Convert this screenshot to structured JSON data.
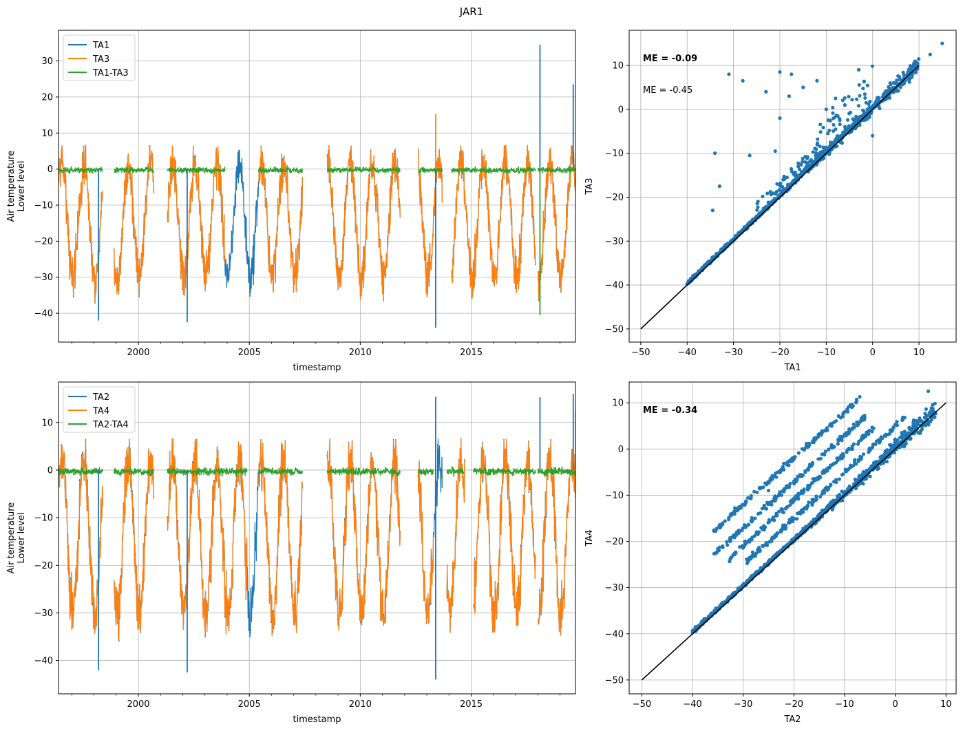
{
  "figure": {
    "title": "JAR1"
  },
  "colors": {
    "series1": "#1f77b4",
    "series2": "#ff7f0e",
    "diff": "#2ca02c",
    "identity": "#000000"
  },
  "chart_data": [
    {
      "type": "line",
      "id": "ts-top",
      "xlabel": "timestamp",
      "ylabel_lines": [
        "Air temperature",
        "Lower level"
      ],
      "xlim": [
        1996.4,
        2019.7
      ],
      "ylim": [
        -48,
        38.5
      ],
      "xticks": [
        2000,
        2005,
        2010,
        2015
      ],
      "yticks": [
        -40,
        -30,
        -20,
        -10,
        0,
        10,
        20,
        30
      ],
      "legend": "upper-left",
      "series": [
        {
          "name": "TA1",
          "color": "#1f77b4"
        },
        {
          "name": "TA3",
          "color": "#ff7f0e"
        },
        {
          "name": "TA1-TA3",
          "color": "#2ca02c"
        }
      ],
      "data_periods": [
        [
          1996.4,
          1998.4
        ],
        [
          1998.9,
          2000.7
        ],
        [
          2001.3,
          2007.4
        ],
        [
          2008.5,
          2011.8
        ],
        [
          2012.6,
          2013.7
        ],
        [
          2014.1,
          2017.9
        ],
        [
          2018.0,
          2019.7
        ]
      ],
      "primary_only_periods": [
        [
          2003.9,
          2005.4
        ]
      ],
      "extremes": [
        {
          "series": "TA1",
          "x": 2018.1,
          "y": 34.5
        },
        {
          "series": "TA1",
          "x": 2019.6,
          "y": 23.5
        },
        {
          "series": "TA3",
          "x": 2013.4,
          "y": 15.3
        },
        {
          "series": "TA1",
          "x": 2013.4,
          "y": -44
        },
        {
          "series": "TA1",
          "x": 2002.2,
          "y": -42.5
        },
        {
          "series": "TA1",
          "x": 1998.2,
          "y": -42
        },
        {
          "series": "TA1-TA3",
          "x": 2018.1,
          "y": -40.5
        }
      ]
    },
    {
      "type": "scatter",
      "id": "scatter-top",
      "xlabel": "TA1",
      "ylabel": "TA3",
      "xlim": [
        -52.5,
        18
      ],
      "ylim": [
        -53,
        18
      ],
      "xticks": [
        -50,
        -40,
        -30,
        -20,
        -10,
        0,
        10
      ],
      "yticks": [
        -50,
        -40,
        -30,
        -20,
        -10,
        0,
        10
      ],
      "identity_line": [
        -50,
        10
      ],
      "annotations": [
        "ME = -0.09",
        "ME = -0.45"
      ],
      "point_color": "#1f77b4",
      "cloud_x_range": [
        -40,
        10
      ],
      "outliers": [
        [
          15,
          15
        ],
        [
          12.4,
          12.5
        ],
        [
          -31,
          8
        ],
        [
          -28,
          6.5
        ],
        [
          -34,
          -10
        ],
        [
          -33,
          -17.5
        ],
        [
          -34.5,
          -23
        ],
        [
          -21,
          -9.5
        ],
        [
          -26.5,
          -10.5
        ],
        [
          -20,
          8.5
        ],
        [
          -17.5,
          8
        ],
        [
          -12,
          6.5
        ],
        [
          -3,
          9
        ],
        [
          -6,
          1
        ],
        [
          -8,
          2.5
        ],
        [
          -15,
          5
        ],
        [
          -20,
          -2
        ],
        [
          -23,
          4
        ],
        [
          -18,
          3
        ],
        [
          -10,
          0
        ],
        [
          0,
          -6
        ]
      ]
    },
    {
      "type": "line",
      "id": "ts-bottom",
      "xlabel": "timestamp",
      "ylabel_lines": [
        "Air temperature",
        "Lower level"
      ],
      "xlim": [
        1996.4,
        2019.7
      ],
      "ylim": [
        -47,
        18.5
      ],
      "xticks": [
        2000,
        2005,
        2010,
        2015
      ],
      "yticks": [
        -40,
        -30,
        -20,
        -10,
        0,
        10
      ],
      "legend": "upper-left",
      "series": [
        {
          "name": "TA2",
          "color": "#1f77b4"
        },
        {
          "name": "TA4",
          "color": "#ff7f0e"
        },
        {
          "name": "TA2-TA4",
          "color": "#2ca02c"
        }
      ],
      "data_periods": [
        [
          1996.4,
          1998.4
        ],
        [
          1998.9,
          2000.7
        ],
        [
          2001.3,
          2007.4
        ],
        [
          2008.5,
          2011.8
        ],
        [
          2012.6,
          2013.7
        ],
        [
          2013.9,
          2014.7
        ],
        [
          2015.1,
          2017.9
        ],
        [
          2018.0,
          2019.7
        ]
      ],
      "primary_only_periods": [
        [
          2004.9,
          2005.4
        ],
        [
          2013.3,
          2013.8
        ]
      ],
      "extremes": [
        {
          "series": "TA2",
          "x": 2013.4,
          "y": 15.4
        },
        {
          "series": "TA2",
          "x": 2018.1,
          "y": 15.3
        },
        {
          "series": "TA2",
          "x": 2019.6,
          "y": 16
        },
        {
          "series": "TA4",
          "x": 2019.7,
          "y": 12.5
        },
        {
          "series": "TA2",
          "x": 2013.4,
          "y": -44
        },
        {
          "series": "TA2",
          "x": 2002.2,
          "y": -42.5
        },
        {
          "series": "TA2",
          "x": 1998.2,
          "y": -42
        }
      ]
    },
    {
      "type": "scatter",
      "id": "scatter-bottom",
      "xlabel": "TA2",
      "ylabel": "TA4",
      "xlim": [
        -52.5,
        12
      ],
      "ylim": [
        -53,
        14.5
      ],
      "xticks": [
        -50,
        -40,
        -30,
        -20,
        -10,
        0,
        10
      ],
      "yticks": [
        -50,
        -40,
        -30,
        -20,
        -10,
        0,
        10
      ],
      "identity_line": [
        -50,
        10
      ],
      "annotations": [
        "ME = -0.34"
      ],
      "point_color": "#1f77b4",
      "cloud_x_range": [
        -40,
        8
      ],
      "offset_bands": [
        {
          "x_from": -36,
          "x_to": -7,
          "offset": 18
        },
        {
          "x_from": -36,
          "x_to": -6,
          "offset": 13
        },
        {
          "x_from": -33,
          "x_to": -4,
          "offset": 9
        },
        {
          "x_from": -30,
          "x_to": 2,
          "offset": 5
        }
      ],
      "outliers": [
        [
          6.5,
          12.5
        ],
        [
          -22,
          -4.5
        ],
        [
          -25,
          -9
        ]
      ]
    }
  ]
}
